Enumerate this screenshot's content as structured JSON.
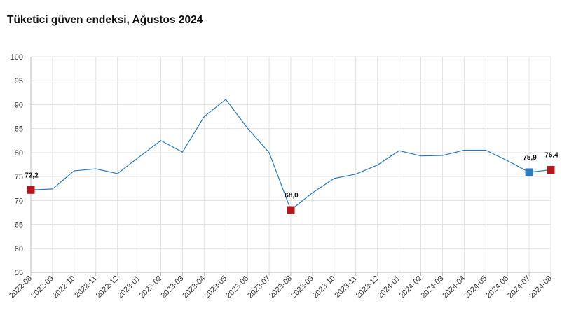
{
  "chart_data": {
    "type": "line",
    "title": "Tüketici güven endeksi, Ağustos 2024",
    "xlabel": "",
    "ylabel": "",
    "ylim": [
      55,
      100
    ],
    "yticks": [
      55,
      60,
      65,
      70,
      75,
      80,
      85,
      90,
      95,
      100
    ],
    "ytick_labels": [
      "55",
      "60",
      "65",
      "70",
      "75",
      "80",
      "85",
      "90",
      "95",
      "100"
    ],
    "grid": true,
    "legend": "none",
    "categories": [
      "2022-08",
      "2022-09",
      "2022-10",
      "2022-11",
      "2022-12",
      "2023-01",
      "2023-02",
      "2023-03",
      "2023-04",
      "2023-05",
      "2023-06",
      "2023-07",
      "2023-08",
      "2023-09",
      "2023-10",
      "2023-11",
      "2023-12",
      "2024-01",
      "2024-02",
      "2024-03",
      "2024-04",
      "2024-05",
      "2024-06",
      "2024-07",
      "2024-08"
    ],
    "series": [
      {
        "name": "",
        "color": "#2b7bbf",
        "values": [
          72.2,
          72.4,
          76.2,
          76.6,
          75.6,
          79.1,
          82.5,
          80.1,
          87.5,
          91.1,
          85.1,
          80.0,
          68.0,
          71.6,
          74.6,
          75.5,
          77.4,
          80.4,
          79.3,
          79.4,
          80.5,
          80.5,
          78.3,
          75.9,
          76.4
        ]
      }
    ],
    "markers": [
      {
        "index": 0,
        "label": "72,2",
        "color": "#b5161c"
      },
      {
        "index": 12,
        "label": "68,0",
        "color": "#b5161c"
      },
      {
        "index": 23,
        "label": "75,9",
        "color": "#2b7bbf"
      },
      {
        "index": 24,
        "label": "76,4",
        "color": "#b5161c"
      }
    ],
    "colors": {
      "line": "#2b7bbf",
      "grid": "#e3e3e3",
      "axis": "#bbbbbb"
    }
  }
}
